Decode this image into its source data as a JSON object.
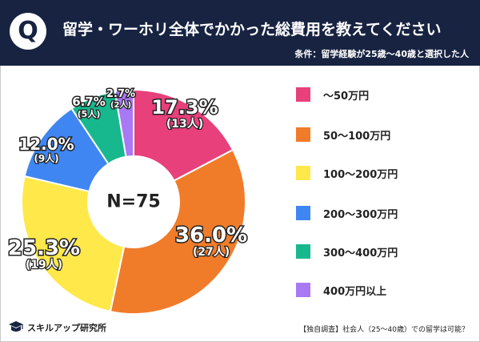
{
  "header": {
    "q_mark": "Q",
    "title": "留学・ワーホリ全体でかかった総費用を教えてください",
    "subtitle": "条件：留学経験が25歳〜40歳と選択した人"
  },
  "chart_data": {
    "type": "pie",
    "center_label": "N=75",
    "slices": [
      {
        "label": "〜50万円",
        "percent": "17.3%",
        "count": "(13人)",
        "value": 13,
        "color": "#e8407b"
      },
      {
        "label": "50〜100万円",
        "percent": "36.0%",
        "count": "(27人)",
        "value": 27,
        "color": "#f07c2a"
      },
      {
        "label": "100〜200万円",
        "percent": "25.3%",
        "count": "(19人)",
        "value": 19,
        "color": "#ffe84a"
      },
      {
        "label": "200〜300万円",
        "percent": "12.0%",
        "count": "(9人)",
        "value": 9,
        "color": "#3f86f2"
      },
      {
        "label": "300〜400万円",
        "percent": "6.7%",
        "count": "(5人)",
        "value": 5,
        "color": "#17b88d"
      },
      {
        "label": "400万円以上",
        "percent": "2.7%",
        "count": "(2人)",
        "value": 2,
        "color": "#a878f5"
      }
    ],
    "legend_placement": "right"
  },
  "footer": {
    "logo_text": "スキルアップ研究所",
    "source": "【独自調査】社会人（25〜40歳）での留学は可能？"
  }
}
